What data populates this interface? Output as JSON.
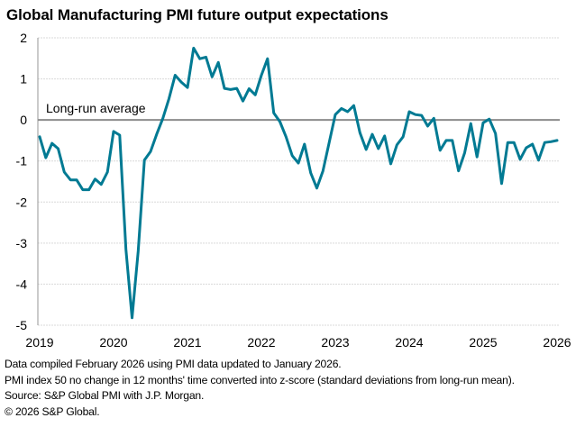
{
  "chart_data": {
    "type": "line",
    "title": "Global Manufacturing PMI future output expectations",
    "xlabel": "",
    "ylabel": "",
    "ylim": [
      -5,
      2
    ],
    "yticks": [
      2,
      1,
      0,
      -1,
      -2,
      -3,
      -4,
      -5
    ],
    "xticks": [
      "2019",
      "2020",
      "2021",
      "2022",
      "2023",
      "2024",
      "2025",
      "2026"
    ],
    "x_range": [
      "2019-01",
      "2026-01"
    ],
    "grid": true,
    "legend": "none",
    "reference_line": {
      "value": 0,
      "label": "Long-run average"
    },
    "line_color": "#007a93",
    "series": [
      {
        "name": "Future output expectations (z-score)",
        "start": "2019-01",
        "frequency": "monthly",
        "values": [
          -0.41,
          -0.92,
          -0.57,
          -0.7,
          -1.27,
          -1.46,
          -1.46,
          -1.7,
          -1.7,
          -1.44,
          -1.57,
          -1.27,
          -0.28,
          -0.37,
          -3.15,
          -4.82,
          -3.2,
          -0.98,
          -0.77,
          -0.35,
          0.04,
          0.52,
          1.09,
          0.92,
          0.79,
          1.75,
          1.49,
          1.53,
          1.05,
          1.4,
          0.77,
          0.74,
          0.77,
          0.46,
          0.76,
          0.61,
          1.09,
          1.49,
          0.17,
          -0.04,
          -0.41,
          -0.87,
          -1.05,
          -0.59,
          -1.29,
          -1.66,
          -1.24,
          -0.55,
          0.13,
          0.28,
          0.2,
          0.35,
          -0.31,
          -0.72,
          -0.35,
          -0.7,
          -0.39,
          -1.07,
          -0.61,
          -0.41,
          0.2,
          0.13,
          0.11,
          -0.15,
          0.04,
          -0.74,
          -0.5,
          -0.5,
          -1.24,
          -0.8,
          -0.09,
          -0.9,
          -0.07,
          0.02,
          -0.33,
          -1.55,
          -0.55,
          -0.55,
          -0.96,
          -0.68,
          -0.59,
          -0.98,
          -0.55,
          -0.53,
          -0.5
        ]
      }
    ]
  },
  "notes": [
    "Data compiled February 2026 using PMI data updated to January 2026.",
    "PMI index 50 no change in 12 months' time converted into z-score (standard deviations from long-run mean).",
    "Source: S&P Global PMI with J.P. Morgan.",
    "© 2026 S&P Global."
  ]
}
